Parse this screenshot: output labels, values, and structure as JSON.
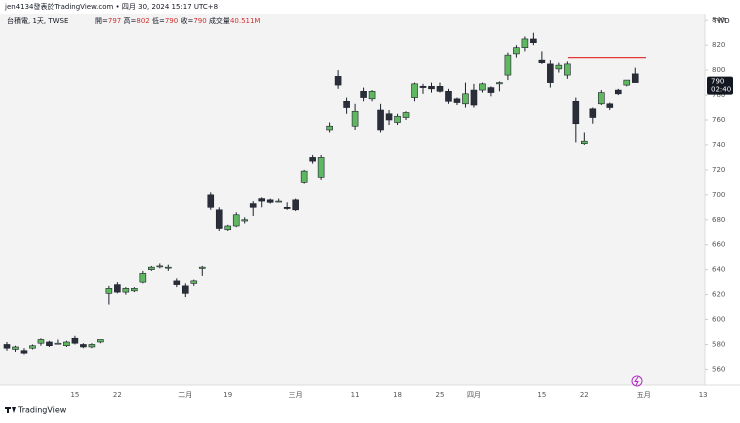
{
  "chart_data": {
    "type": "candlestick",
    "attribution": "jen4134發表於TradingView.com • 四月 30, 2024 15:17 UTC+8",
    "symbol": "台積電, 1天, TWSE",
    "ohlc_labels": [
      "開=",
      "高=",
      "低=",
      "收="
    ],
    "volume": {
      "label": "成交量",
      "value": 40511000,
      "value_label": "40.511M"
    },
    "currency": "TWD",
    "countdown": "02:40",
    "brand": "TradingView",
    "up_color": "#5fb760",
    "down_color": "#2a2e39",
    "border_color": "#1e222d",
    "hline": {
      "value": 810,
      "color": "#e53935"
    },
    "categories": [
      null,
      null,
      null,
      null,
      null,
      null,
      null,
      null,
      "15",
      null,
      null,
      null,
      null,
      "22",
      null,
      null,
      null,
      null,
      null,
      null,
      null,
      "二月",
      null,
      null,
      null,
      null,
      "19",
      null,
      null,
      null,
      null,
      null,
      null,
      null,
      "三月",
      null,
      null,
      null,
      null,
      null,
      null,
      "11",
      null,
      null,
      null,
      null,
      "18",
      null,
      null,
      null,
      null,
      "25",
      null,
      null,
      null,
      "四月",
      null,
      null,
      null,
      null,
      null,
      null,
      null,
      "15",
      null,
      null,
      null,
      null,
      "22",
      null,
      null,
      null,
      null,
      null,
      null,
      "五月",
      null,
      null,
      null,
      null,
      null,
      null,
      "13"
    ],
    "open": [
      580,
      576,
      575,
      577,
      581,
      582,
      581,
      579,
      585,
      580,
      578,
      582,
      621,
      628,
      622,
      623,
      630,
      640,
      643,
      642,
      631,
      627,
      629,
      641,
      700,
      688,
      672,
      675,
      679,
      693,
      697,
      696,
      695,
      690,
      696,
      710,
      730,
      714,
      752,
      795,
      775,
      755,
      783,
      777,
      768,
      765,
      758,
      762,
      778,
      787,
      787,
      787,
      783,
      777,
      773,
      784,
      784,
      786,
      789,
      796,
      813,
      818,
      825,
      808,
      805,
      801,
      796,
      775,
      741,
      769,
      773,
      773,
      784,
      788,
      797,
      null,
      null,
      null,
      null,
      null,
      null,
      null,
      null
    ],
    "high": [
      582,
      579,
      577,
      580,
      585,
      583,
      584,
      583,
      587,
      581,
      581,
      584,
      627,
      630,
      626,
      626,
      639,
      643,
      645,
      644,
      633,
      629,
      632,
      643,
      702,
      690,
      676,
      686,
      682,
      695,
      698,
      697,
      697,
      694,
      697,
      720,
      732,
      732,
      758,
      800,
      778,
      773,
      786,
      784,
      773,
      768,
      765,
      767,
      790,
      789,
      790,
      790,
      785,
      778,
      790,
      789,
      790,
      787,
      791,
      814,
      820,
      827,
      830,
      815,
      808,
      806,
      807,
      778,
      750,
      770,
      784,
      774,
      785,
      792,
      802,
      null,
      null,
      null,
      null,
      null,
      null,
      null,
      null
    ],
    "low": [
      575,
      574,
      572,
      576,
      579,
      578,
      580,
      578,
      580,
      577,
      577,
      581,
      612,
      621,
      620,
      622,
      629,
      639,
      641,
      639,
      626,
      618,
      627,
      635,
      688,
      671,
      671,
      674,
      677,
      683,
      690,
      693,
      694,
      688,
      687,
      709,
      725,
      712,
      750,
      785,
      765,
      752,
      775,
      775,
      750,
      756,
      756,
      760,
      775,
      781,
      782,
      782,
      773,
      772,
      770,
      770,
      782,
      779,
      783,
      792,
      810,
      815,
      820,
      805,
      786,
      798,
      793,
      742,
      740,
      757,
      772,
      768,
      780,
      787,
      790,
      null,
      null,
      null,
      null,
      null,
      null,
      null,
      null
    ],
    "close": [
      577,
      578,
      573,
      579,
      584,
      579,
      581,
      582,
      581,
      578,
      580,
      584,
      625,
      622,
      625,
      625,
      637,
      642,
      643,
      642,
      628,
      621,
      631,
      642,
      690,
      673,
      675,
      684,
      680,
      690,
      695,
      694,
      695,
      689,
      688,
      719,
      727,
      730,
      755,
      788,
      770,
      767,
      778,
      783,
      752,
      760,
      763,
      766,
      789,
      786,
      785,
      783,
      775,
      774,
      781,
      772,
      789,
      782,
      790,
      812,
      818,
      825,
      822,
      806,
      790,
      804,
      805,
      757,
      743,
      762,
      782,
      770,
      781,
      792,
      790,
      null,
      null,
      null,
      null,
      null,
      null,
      null,
      null
    ],
    "ylim": [
      547.5,
      845
    ],
    "yticks": [
      560,
      580,
      600,
      620,
      640,
      660,
      680,
      700,
      720,
      740,
      760,
      780,
      800,
      820,
      840
    ],
    "grid": false
  }
}
